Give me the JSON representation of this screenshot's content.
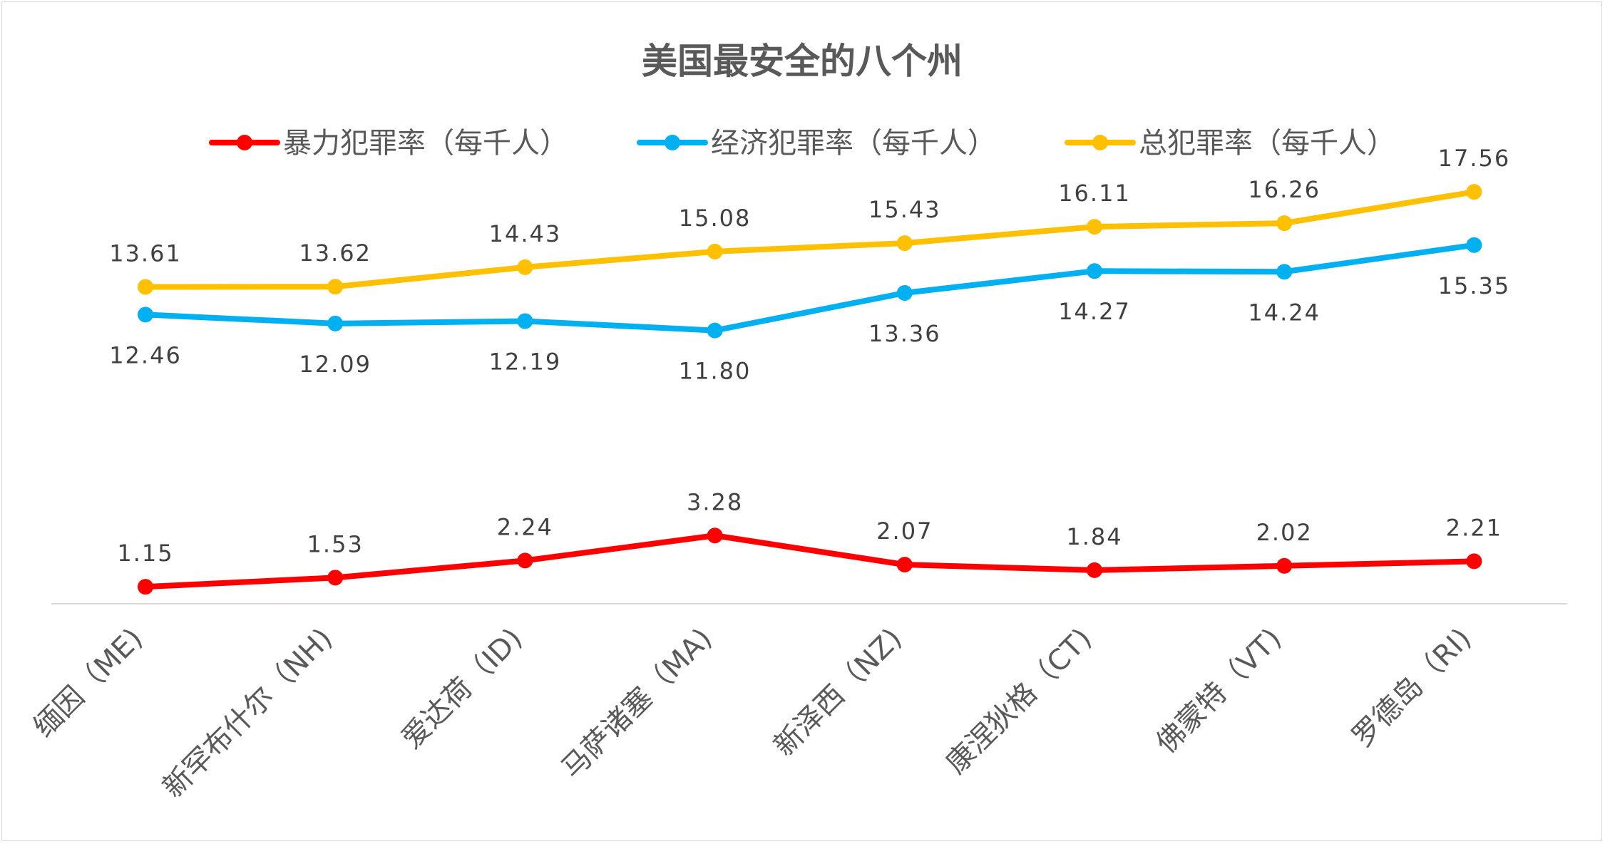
{
  "chart_data": {
    "type": "line",
    "title": "美国最安全的八个州",
    "categories": [
      "缅因（ME)",
      "新罕布什尔（NH)",
      "爱达荷（ID)",
      "马萨诸塞（MA)",
      "新泽西（NZ)",
      "康涅狄格（CT)",
      "佛蒙特（VT)",
      "罗德岛（RI)"
    ],
    "series": [
      {
        "name": "暴力犯罪率（每千人）",
        "color": "#ff0000",
        "values": [
          1.15,
          1.53,
          2.24,
          3.28,
          2.07,
          1.84,
          2.02,
          2.21
        ],
        "labels": [
          "1.15",
          "1.53",
          "2.24",
          "3.28",
          "2.07",
          "1.84",
          "2.02",
          "2.21"
        ],
        "label_position": "above"
      },
      {
        "name": "经济犯罪率（每千人）",
        "color": "#00b0f0",
        "values": [
          12.46,
          12.09,
          12.19,
          11.8,
          13.36,
          14.27,
          14.24,
          15.35
        ],
        "labels": [
          "12.46",
          "12.09",
          "12.19",
          "11.80",
          "13.36",
          "14.27",
          "14.24",
          "15.35"
        ],
        "label_position": "below"
      },
      {
        "name": "总犯罪率（每千人）",
        "color": "#ffc000",
        "values": [
          13.61,
          13.62,
          14.43,
          15.08,
          15.43,
          16.11,
          16.26,
          17.56
        ],
        "labels": [
          "13.61",
          "13.62",
          "14.43",
          "15.08",
          "15.43",
          "16.11",
          "16.26",
          "17.56"
        ],
        "label_position": "above"
      }
    ],
    "ylim": [
      0,
      20
    ],
    "grid": false,
    "legend_position": "top",
    "axis_color": "#d9d9d9"
  }
}
